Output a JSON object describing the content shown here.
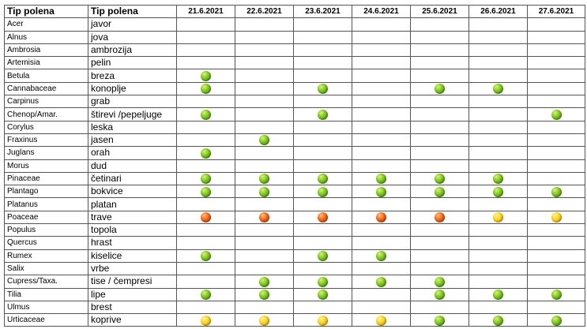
{
  "header": {
    "col_latin": "Tip polena",
    "col_local": "Tip polena",
    "dates": [
      "21.6.2021",
      "22.6.2021",
      "23.6.2021",
      "24.6.2021",
      "25.6.2021",
      "26.6.2021",
      "27.6.2021"
    ]
  },
  "level_colors": {
    "green": "#7cc61c",
    "orange": "#f5661a",
    "yellow": "#ffd21c"
  },
  "rows": [
    {
      "latin": "Acer",
      "local": "javor",
      "levels": [
        "",
        "",
        "",
        "",
        "",
        "",
        ""
      ]
    },
    {
      "latin": "Alnus",
      "local": "jova",
      "levels": [
        "",
        "",
        "",
        "",
        "",
        "",
        ""
      ]
    },
    {
      "latin": "Ambrosia",
      "local": "ambrozija",
      "levels": [
        "",
        "",
        "",
        "",
        "",
        "",
        ""
      ]
    },
    {
      "latin": "Artemisia",
      "local": "pelin",
      "levels": [
        "",
        "",
        "",
        "",
        "",
        "",
        ""
      ]
    },
    {
      "latin": "Betula",
      "local": "breza",
      "levels": [
        "green",
        "",
        "",
        "",
        "",
        "",
        ""
      ]
    },
    {
      "latin": "Cannabaceae",
      "local": "konoplje",
      "levels": [
        "green",
        "",
        "green",
        "",
        "green",
        "green",
        ""
      ]
    },
    {
      "latin": "Carpinus",
      "local": "grab",
      "levels": [
        "",
        "",
        "",
        "",
        "",
        "",
        ""
      ]
    },
    {
      "latin": "Chenop/Amar.",
      "local": "štirevi /pepeljuge",
      "levels": [
        "green",
        "",
        "green",
        "",
        "",
        "",
        "green"
      ]
    },
    {
      "latin": "Corylus",
      "local": "leska",
      "levels": [
        "",
        "",
        "",
        "",
        "",
        "",
        ""
      ]
    },
    {
      "latin": "Fraxinus",
      "local": "jasen",
      "levels": [
        "",
        "green",
        "",
        "",
        "",
        "",
        ""
      ]
    },
    {
      "latin": "Juglans",
      "local": "orah",
      "levels": [
        "green",
        "",
        "",
        "",
        "",
        "",
        ""
      ]
    },
    {
      "latin": "Morus",
      "local": "dud",
      "levels": [
        "",
        "",
        "",
        "",
        "",
        "",
        ""
      ]
    },
    {
      "latin": "Pinaceae",
      "local": "četinari",
      "levels": [
        "green",
        "green",
        "green",
        "green",
        "green",
        "green",
        ""
      ]
    },
    {
      "latin": "Plantago",
      "local": "bokvice",
      "levels": [
        "green",
        "green",
        "green",
        "green",
        "green",
        "green",
        "green"
      ]
    },
    {
      "latin": "Platanus",
      "local": "platan",
      "levels": [
        "",
        "",
        "",
        "",
        "",
        "",
        ""
      ]
    },
    {
      "latin": "Poaceae",
      "local": "trave",
      "levels": [
        "orange",
        "orange",
        "orange",
        "orange",
        "orange",
        "yellow",
        "yellow"
      ]
    },
    {
      "latin": "Populus",
      "local": "topola",
      "levels": [
        "",
        "",
        "",
        "",
        "",
        "",
        ""
      ]
    },
    {
      "latin": "Quercus",
      "local": "hrast",
      "levels": [
        "",
        "",
        "",
        "",
        "",
        "",
        ""
      ]
    },
    {
      "latin": "Rumex",
      "local": "kiselice",
      "levels": [
        "green",
        "",
        "green",
        "green",
        "",
        "",
        ""
      ]
    },
    {
      "latin": "Salix",
      "local": "vrbe",
      "levels": [
        "",
        "",
        "",
        "",
        "",
        "",
        ""
      ]
    },
    {
      "latin": "Cupress/Taxa.",
      "local": "tise / čempresi",
      "levels": [
        "",
        "green",
        "green",
        "green",
        "green",
        "",
        ""
      ]
    },
    {
      "latin": "Tilia",
      "local": "lipe",
      "levels": [
        "green",
        "green",
        "green",
        "",
        "green",
        "green",
        "green"
      ]
    },
    {
      "latin": "Ulmus",
      "local": "brest",
      "levels": [
        "",
        "",
        "",
        "",
        "",
        "",
        ""
      ]
    },
    {
      "latin": "Urticaceae",
      "local": "koprive",
      "levels": [
        "yellow",
        "yellow",
        "yellow",
        "yellow",
        "green",
        "green",
        "green"
      ]
    }
  ]
}
